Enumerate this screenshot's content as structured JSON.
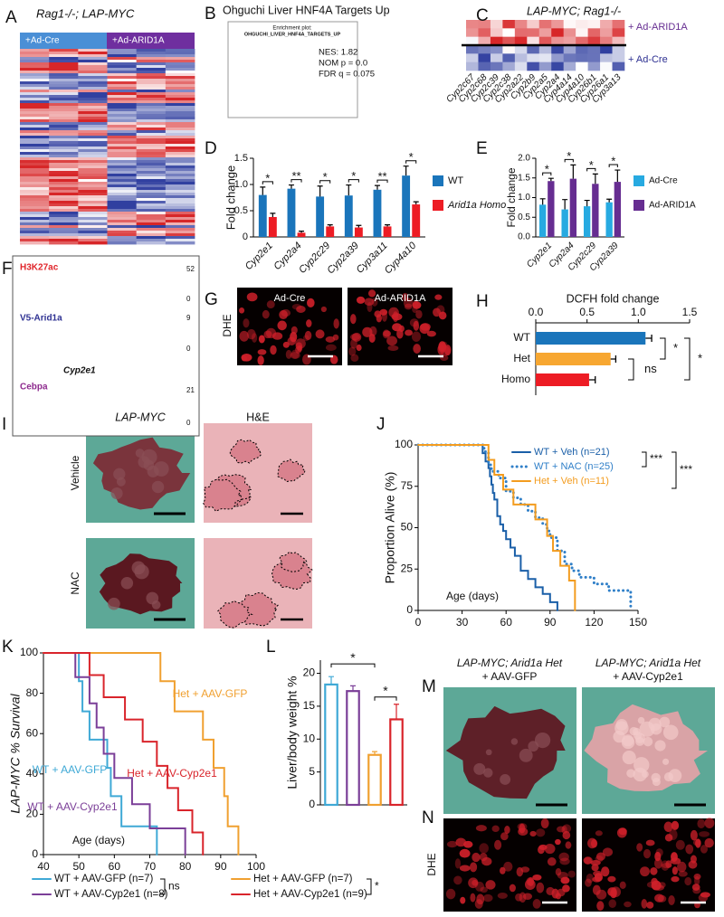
{
  "panel_labels": [
    "A",
    "B",
    "C",
    "D",
    "E",
    "F",
    "G",
    "H",
    "I",
    "J",
    "K",
    "L",
    "M",
    "N"
  ],
  "panel_a": {
    "title": "Rag1-/-; LAP-MYC",
    "groups": [
      "+Ad-Cre",
      "+Ad-ARID1A"
    ]
  },
  "panel_b": {
    "title": "Ohguchi Liver HNF4A Targets Up",
    "plot_title": "Enrichment plot:",
    "gene_set": "OHGUCHI_LIVER_HNF4A_TARGETS_UP",
    "stats": [
      "NES: 1.82",
      "NOM p = 0.0",
      "FDR q = 0.075"
    ]
  },
  "panel_c": {
    "title": "LAP-MYC; Rag1-/-",
    "groups": [
      "+ Ad-ARID1A",
      "+ Ad-Cre"
    ],
    "genes": [
      "Cyp2c67",
      "Cyp2c68",
      "Cyp2c39",
      "Cyp2c38",
      "Cyp2a22",
      "Cyp2b9",
      "Cyp2a5",
      "Cyp2a4",
      "Cyp4a14",
      "Cyp4a10",
      "Cyp26b1",
      "Cyp26a1",
      "Cyp3a13"
    ]
  },
  "panel_f": {
    "tracks": [
      {
        "name": "H3K27ac",
        "max": 52,
        "min": 0
      },
      {
        "name": "V5-Arid1a",
        "max": 9,
        "min": 0
      },
      {
        "name": "Cebpa",
        "max": 21,
        "min": 0
      }
    ],
    "gene": "Cyp2e1"
  },
  "panel_g": {
    "side_label": "DHE",
    "images": [
      "Ad-Cre",
      "Ad-ARID1A"
    ]
  },
  "panel_i": {
    "columns": [
      "LAP-MYC",
      "H&E"
    ],
    "rows": [
      "Vehicle",
      "NAC"
    ]
  },
  "panel_m": {
    "images": [
      [
        "LAP-MYC; Arid1a Het",
        "+ AAV-GFP"
      ],
      [
        "LAP-MYC; Arid1a Het",
        "+ AAV-Cyp2e1"
      ]
    ]
  },
  "panel_n": {
    "side_label": "DHE"
  },
  "chart_data": [
    {
      "type": "bar",
      "label": "D",
      "ylabel": "Fold change",
      "categories": [
        "Cyp2e1",
        "Cyp2a4",
        "Cyp2c29",
        "Cyp2a39",
        "Cyp3a11",
        "Cyp4a10"
      ],
      "series": [
        {
          "name": "WT",
          "color": "#1a75bb",
          "values": [
            0.8,
            0.92,
            0.77,
            0.79,
            0.9,
            1.17
          ],
          "errors": [
            0.15,
            0.07,
            0.2,
            0.2,
            0.08,
            0.18
          ]
        },
        {
          "name": "Arid1a Homo",
          "color": "#ed1c24",
          "values": [
            0.38,
            0.08,
            0.2,
            0.18,
            0.2,
            0.62
          ],
          "errors": [
            0.07,
            0.03,
            0.03,
            0.04,
            0.03,
            0.05
          ]
        }
      ],
      "significance": [
        "*",
        "**",
        "*",
        "*",
        "**",
        "*"
      ],
      "ylim": [
        0,
        1.5
      ],
      "yticks": [
        0,
        0.5,
        {
          "value": 1,
          "label": "1.0"
        },
        1.5
      ]
    },
    {
      "type": "bar",
      "label": "E",
      "ylabel": "Fold change",
      "categories": [
        "Cyp2e1",
        "Cyp2a4",
        "Cyp2c29",
        "Cyp2a39"
      ],
      "series": [
        {
          "name": "Ad-Cre",
          "color": "#27aae1",
          "values": [
            0.82,
            0.7,
            0.78,
            0.88
          ],
          "errors": [
            0.15,
            0.25,
            0.15,
            0.08
          ]
        },
        {
          "name": "Ad-ARID1A",
          "color": "#662d91",
          "values": [
            1.42,
            1.48,
            1.35,
            1.4
          ],
          "errors": [
            0.07,
            0.35,
            0.25,
            0.3
          ]
        }
      ],
      "significance": [
        "*",
        "*",
        "*",
        "*"
      ],
      "ylim": [
        0,
        2
      ],
      "yticks": [
        {
          "value": 0,
          "label": "0.0"
        },
        0.5,
        {
          "value": 1,
          "label": "1.0"
        },
        1.5,
        {
          "value": 2,
          "label": "2.0"
        }
      ]
    },
    {
      "type": "hbar",
      "label": "H",
      "title": "DCFH fold change",
      "categories": [
        "WT",
        "Het",
        "Homo"
      ],
      "values": [
        1.07,
        0.73,
        0.52
      ],
      "errors": [
        0.06,
        0.05,
        0.06
      ],
      "colors": [
        "#1a75bb",
        "#f7a731",
        "#ed1c24"
      ],
      "significance": [
        "ns",
        "*",
        "*"
      ],
      "xlim": [
        0,
        1.5
      ],
      "xticks": [
        {
          "value": 0,
          "label": "0.0"
        },
        0.5,
        {
          "value": 1,
          "label": "1.0"
        },
        1.5
      ]
    },
    {
      "type": "survival",
      "label": "J",
      "ylabel": "Proportion Alive (%)",
      "xlabel": "Age (days)",
      "series": [
        {
          "name": "WT + Veh (n=21)",
          "color": "#1a5fa8",
          "line_style": "solid",
          "x": [
            0,
            44,
            46,
            48,
            49,
            50,
            51,
            52,
            54,
            56,
            58,
            60,
            63,
            66,
            70,
            75,
            80,
            85,
            90,
            95
          ],
          "values": [
            100,
            95,
            90,
            86,
            81,
            76,
            71,
            67,
            57,
            52,
            48,
            43,
            38,
            33,
            24,
            19,
            14,
            10,
            5,
            0
          ]
        },
        {
          "name": "WT + NAC (n=25)",
          "color": "#2f7fc8",
          "line_style": "dotted",
          "x": [
            0,
            45,
            48,
            50,
            55,
            60,
            65,
            70,
            75,
            80,
            85,
            88,
            90,
            95,
            100,
            105,
            110,
            120,
            130,
            140,
            145
          ],
          "values": [
            100,
            96,
            88,
            84,
            80,
            72,
            68,
            64,
            60,
            56,
            52,
            48,
            44,
            36,
            28,
            24,
            20,
            16,
            12,
            12,
            0
          ]
        },
        {
          "name": "Het + Veh (n=11)",
          "color": "#f39c1f",
          "line_style": "solid",
          "x": [
            0,
            48,
            52,
            58,
            65,
            80,
            88,
            92,
            97,
            103,
            107
          ],
          "values": [
            100,
            91,
            82,
            73,
            64,
            55,
            45,
            36,
            27,
            18,
            0
          ]
        }
      ],
      "significance": [
        "***",
        "***"
      ],
      "xlim": [
        0,
        150
      ],
      "xticks": [
        0,
        30,
        60,
        90,
        120,
        150
      ],
      "ylim": [
        0,
        100
      ],
      "yticks": [
        0,
        25,
        50,
        75,
        100
      ]
    },
    {
      "type": "survival",
      "label": "K",
      "ylabel": "LAP-MYC % Survival",
      "xlabel": "Age (days)",
      "series": [
        {
          "name": "WT + AAV-GFP (n=7)",
          "label": "WT + AAV-GFP",
          "color": "#3fa9d6",
          "line_style": "solid",
          "x": [
            40,
            50,
            51,
            53,
            58,
            59,
            62,
            72
          ],
          "values": [
            100,
            86,
            71,
            57,
            43,
            29,
            14,
            0
          ]
        },
        {
          "name": "WT + AAV-Cyp2e1 (n=8)",
          "label": "WT + AAV-Cyp2e1",
          "color": "#7b3f98",
          "line_style": "solid",
          "x": [
            40,
            49,
            53,
            55,
            57,
            60,
            65,
            70,
            80
          ],
          "values": [
            100,
            88,
            75,
            63,
            50,
            38,
            25,
            13,
            0
          ]
        },
        {
          "name": "Het + AAV-GFP (n=7)",
          "label": "Het + AAV-GFP",
          "color": "#f0a030",
          "line_style": "solid",
          "x": [
            40,
            73,
            77,
            85,
            88,
            91,
            92,
            95
          ],
          "values": [
            100,
            86,
            71,
            57,
            43,
            29,
            14,
            0
          ]
        },
        {
          "name": "Het + AAV-Cyp2e1 (n=9)",
          "label": "Het + AAV-Cyp2e1",
          "color": "#d9242b",
          "line_style": "solid",
          "x": [
            40,
            53,
            57,
            63,
            68,
            72,
            75,
            78,
            82,
            85
          ],
          "values": [
            100,
            89,
            78,
            67,
            56,
            44,
            33,
            22,
            11,
            0
          ]
        }
      ],
      "significance": [
        "ns",
        "*"
      ],
      "xlim": [
        40,
        100
      ],
      "xticks": [
        40,
        50,
        60,
        70,
        80,
        90,
        100
      ],
      "ylim": [
        0,
        100
      ],
      "yticks": [
        0,
        20,
        40,
        60,
        80,
        100
      ]
    },
    {
      "type": "bar",
      "label": "L",
      "ylabel": "Liver/body weight %",
      "bar_style": "outline",
      "categories": [
        null,
        null,
        null,
        null
      ],
      "values": [
        18.3,
        17.3,
        7.6,
        13
      ],
      "errors": [
        1.2,
        0.8,
        0.5,
        2.3
      ],
      "colors": [
        "#3fa9d6",
        "#7b3f98",
        "#f0a030",
        "#d9242b"
      ],
      "significance": [
        "*",
        "*"
      ],
      "ylim": [
        0,
        22
      ],
      "yticks": [
        0,
        5,
        10,
        15,
        20
      ]
    }
  ]
}
